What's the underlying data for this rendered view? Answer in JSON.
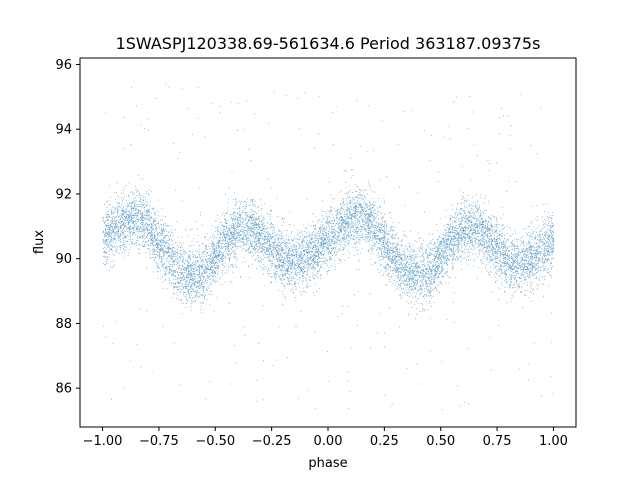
{
  "chart_data": {
    "type": "scatter",
    "title": "1SWASPJ120338.69-561634.6 Period 363187.09375s",
    "xlabel": "phase",
    "ylabel": "flux",
    "xlim": [
      -1.1,
      1.1
    ],
    "ylim": [
      84.8,
      96.2
    ],
    "xticks": [
      -1.0,
      -0.75,
      -0.5,
      -0.25,
      0.0,
      0.25,
      0.5,
      0.75,
      1.0
    ],
    "xtick_labels": [
      "−1.00",
      "−0.75",
      "−0.50",
      "−0.25",
      "0.00",
      "0.25",
      "0.50",
      "0.75",
      "1.00"
    ],
    "yticks": [
      86,
      88,
      90,
      92,
      94,
      96
    ],
    "ytick_labels": [
      "86",
      "88",
      "90",
      "92",
      "94",
      "96"
    ],
    "grid": false,
    "marker_color": "#1f77b4",
    "light_curve_profile": {
      "phase": [
        0.0,
        0.05,
        0.1,
        0.15,
        0.2,
        0.25,
        0.3,
        0.35,
        0.4,
        0.45,
        0.5,
        0.55,
        0.6,
        0.65,
        0.7,
        0.75,
        0.8,
        0.85,
        0.9,
        0.95,
        1.0
      ],
      "flux": [
        90.6,
        90.9,
        91.2,
        91.3,
        91.0,
        90.5,
        90.0,
        89.6,
        89.5,
        89.6,
        90.1,
        90.6,
        90.9,
        91.0,
        90.7,
        90.3,
        90.0,
        89.9,
        90.0,
        90.3,
        90.6
      ],
      "scatter_sd": 0.45,
      "outlier_fraction": 0.03,
      "outlier_range": [
        85.3,
        95.5
      ],
      "points_per_unit_phase": 5000
    }
  }
}
